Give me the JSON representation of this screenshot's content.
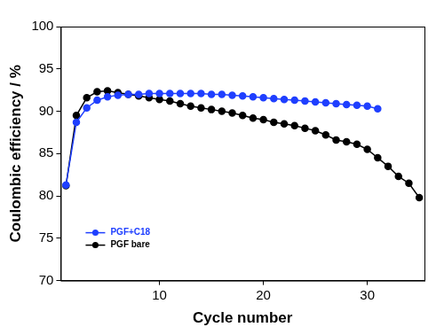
{
  "chart_data": {
    "type": "line",
    "x_label": "Cycle number",
    "y_label": "Coulombic efficiency / %",
    "x": [
      1,
      2,
      3,
      4,
      5,
      6,
      7,
      8,
      9,
      10,
      11,
      12,
      13,
      14,
      15,
      16,
      17,
      18,
      19,
      20,
      21,
      22,
      23,
      24,
      25,
      26,
      27,
      28,
      29,
      30,
      31,
      32,
      33,
      34,
      35
    ],
    "series": [
      {
        "name": "PGF+C18",
        "color": "#1f3fff",
        "marker": "circle",
        "line_style": "solid",
        "values": [
          81.3,
          88.7,
          90.4,
          91.3,
          91.7,
          91.9,
          92.0,
          92.0,
          92.1,
          92.1,
          92.1,
          92.1,
          92.1,
          92.1,
          92.0,
          92.0,
          91.9,
          91.8,
          91.7,
          91.6,
          91.5,
          91.4,
          91.3,
          91.2,
          91.1,
          91.0,
          90.9,
          90.8,
          90.7,
          90.6,
          90.3,
          null,
          null,
          null,
          null
        ]
      },
      {
        "name": "PGF bare",
        "color": "#000000",
        "marker": "circle",
        "line_style": "solid",
        "values": [
          81.2,
          89.5,
          91.6,
          92.3,
          92.4,
          92.2,
          92.0,
          91.8,
          91.6,
          91.4,
          91.2,
          90.9,
          90.6,
          90.4,
          90.2,
          90.0,
          89.8,
          89.5,
          89.2,
          89.0,
          88.7,
          88.5,
          88.3,
          88.0,
          87.7,
          87.2,
          86.6,
          86.4,
          86.1,
          85.5,
          84.5,
          83.5,
          82.3,
          81.5,
          79.8
        ]
      }
    ],
    "xlim": [
      0.5,
      35.5
    ],
    "xticks": [
      10,
      20,
      30
    ],
    "ylim": [
      70,
      100
    ],
    "yticks": [
      70,
      75,
      80,
      85,
      90,
      95,
      100
    ],
    "grid": false,
    "legend": "lower left"
  }
}
